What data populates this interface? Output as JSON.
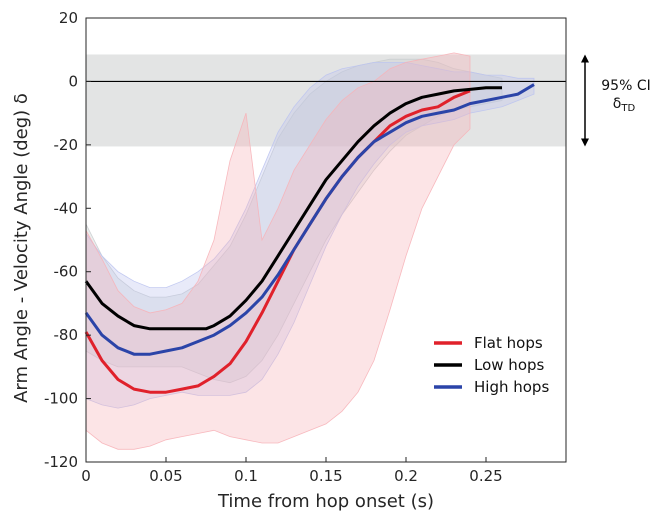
{
  "chart_data": {
    "type": "line",
    "xlabel": "Time from hop onset (s)",
    "ylabel": "Arm Angle - Velocity  Angle (deg) δ",
    "xlim": [
      0,
      0.3
    ],
    "ylim": [
      -120,
      20
    ],
    "xticks": [
      0,
      0.05,
      0.1,
      0.15,
      0.2,
      0.25
    ],
    "xtick_labels": [
      "0",
      "0.05",
      "0.1",
      "0.15",
      "0.2",
      "0.25"
    ],
    "yticks": [
      -120,
      -100,
      -80,
      -60,
      -40,
      -20,
      0,
      20
    ],
    "ytick_labels": [
      "-120",
      "-100",
      "-80",
      "-60",
      "-40",
      "-20",
      "0",
      "20"
    ],
    "ci_band": {
      "lower": -20.5,
      "upper": 8.5,
      "color": "#e3e4e4"
    },
    "zero_line": 0,
    "ci_annotation": {
      "line1": "95% CI",
      "line2_main": "δ",
      "line2_sub": "TD"
    },
    "legend_position": "lower-right",
    "series": [
      {
        "name": "Flat hops",
        "color": "#e0212b",
        "band_color": "#f7b3b8",
        "x": [
          0,
          0.01,
          0.02,
          0.03,
          0.04,
          0.05,
          0.06,
          0.07,
          0.08,
          0.09,
          0.1,
          0.11,
          0.12,
          0.13,
          0.14,
          0.15,
          0.16,
          0.17,
          0.18,
          0.19,
          0.2,
          0.21,
          0.22,
          0.23,
          0.24
        ],
        "y": [
          -79,
          -88,
          -94,
          -97,
          -98,
          -98,
          -97,
          -96,
          -93,
          -89,
          -82,
          -73,
          -63,
          -53,
          -45,
          -37,
          -30,
          -24,
          -19,
          -14,
          -11,
          -9,
          -8,
          -5,
          -3
        ],
        "band_upper": [
          -47,
          -56,
          -66,
          -71,
          -73,
          -72,
          -70,
          -63,
          -50,
          -25,
          -10,
          -50,
          -40,
          -28,
          -20,
          -12,
          -6,
          -2,
          0,
          4,
          6,
          7,
          8,
          9,
          8
        ],
        "band_lower": [
          -110,
          -114,
          -116,
          -116,
          -115,
          -113,
          -112,
          -111,
          -110,
          -112,
          -113,
          -114,
          -114,
          -112,
          -110,
          -108,
          -104,
          -98,
          -88,
          -72,
          -55,
          -40,
          -30,
          -20,
          -15
        ]
      },
      {
        "name": "Low hops",
        "color": "#000000",
        "band_color": "#c9cdcf",
        "x": [
          0,
          0.01,
          0.02,
          0.03,
          0.04,
          0.05,
          0.06,
          0.07,
          0.075,
          0.08,
          0.09,
          0.1,
          0.11,
          0.12,
          0.13,
          0.14,
          0.15,
          0.16,
          0.17,
          0.18,
          0.19,
          0.2,
          0.21,
          0.22,
          0.23,
          0.24,
          0.25,
          0.26
        ],
        "y": [
          -63,
          -70,
          -74,
          -77,
          -78,
          -78,
          -78,
          -78,
          -78,
          -77,
          -74,
          -69,
          -63,
          -55,
          -47,
          -39,
          -31,
          -25,
          -19,
          -14,
          -10,
          -7,
          -5,
          -4,
          -3,
          -2.5,
          -2,
          -2
        ],
        "band_upper": [
          -45,
          -55,
          -62,
          -66,
          -68,
          -68,
          -67,
          -64,
          -61,
          -58,
          -52,
          -42,
          -30,
          -18,
          -10,
          -4,
          0,
          3,
          5,
          6,
          7,
          7,
          7,
          6,
          4,
          3,
          2,
          1
        ],
        "band_lower": [
          -85,
          -88,
          -90,
          -90,
          -90,
          -90,
          -90,
          -92,
          -93,
          -94,
          -95,
          -93,
          -88,
          -80,
          -70,
          -60,
          -50,
          -42,
          -35,
          -28,
          -22,
          -17,
          -14,
          -11,
          -9,
          -8,
          -7,
          -6
        ]
      },
      {
        "name": "High hops",
        "color": "#2b44a8",
        "band_color": "#bcc4ef",
        "x": [
          0,
          0.01,
          0.02,
          0.03,
          0.04,
          0.05,
          0.06,
          0.07,
          0.08,
          0.09,
          0.1,
          0.11,
          0.12,
          0.13,
          0.14,
          0.15,
          0.16,
          0.17,
          0.18,
          0.19,
          0.2,
          0.21,
          0.22,
          0.23,
          0.24,
          0.25,
          0.26,
          0.27,
          0.28
        ],
        "y": [
          -73,
          -80,
          -84,
          -86,
          -86,
          -85,
          -84,
          -82,
          -80,
          -77,
          -73,
          -68,
          -61,
          -53,
          -45,
          -37,
          -30,
          -24,
          -19,
          -16,
          -13,
          -11,
          -10,
          -9,
          -7,
          -6,
          -5,
          -4,
          -1
        ],
        "band_upper": [
          -48,
          -55,
          -60,
          -63,
          -65,
          -65,
          -63,
          -60,
          -56,
          -50,
          -40,
          -28,
          -16,
          -8,
          -2,
          2,
          4,
          5,
          6,
          6,
          6,
          5,
          4,
          3,
          3,
          2,
          2,
          1,
          1
        ],
        "band_lower": [
          -100,
          -102,
          -103,
          -102,
          -100,
          -99,
          -98,
          -99,
          -99,
          -99,
          -98,
          -94,
          -86,
          -76,
          -64,
          -52,
          -42,
          -33,
          -26,
          -20,
          -16,
          -14,
          -13,
          -12,
          -10,
          -9,
          -8,
          -6,
          -4
        ]
      }
    ]
  }
}
